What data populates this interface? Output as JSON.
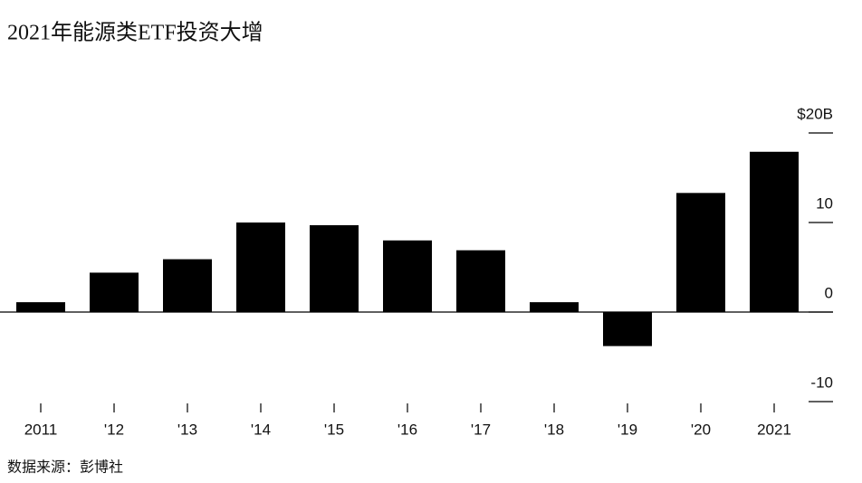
{
  "chart_data": {
    "type": "bar",
    "title": "2021年能源类ETF投资大增",
    "source": "数据来源：彭博社",
    "categories": [
      "2011",
      "'12",
      "'13",
      "'14",
      "'15",
      "'16",
      "'17",
      "'18",
      "'19",
      "'20",
      "2021"
    ],
    "values": [
      1.1,
      4.4,
      5.9,
      10.0,
      9.7,
      8.0,
      6.9,
      1.1,
      -3.8,
      13.3,
      17.9
    ],
    "color": "#000000",
    "ylim": [
      -10,
      20
    ],
    "yticks": [
      {
        "value": 20,
        "label": "$20B"
      },
      10,
      0,
      -10
    ]
  }
}
